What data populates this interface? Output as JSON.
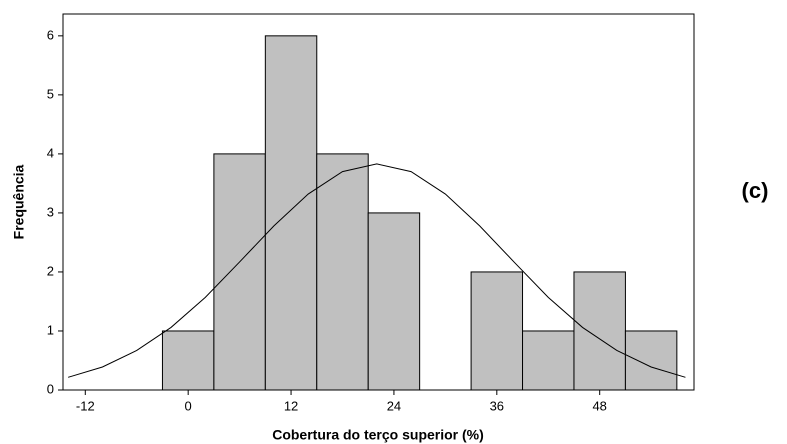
{
  "chart_data": {
    "type": "histogram",
    "xlabel": "Cobertura do terço superior (%)",
    "ylabel": "Frequência",
    "annotation": "(c)",
    "bins": [
      -3,
      3,
      9,
      15,
      21,
      27,
      33,
      39,
      45,
      51,
      57
    ],
    "values": [
      1,
      4,
      6,
      4,
      3,
      0,
      2,
      1,
      2,
      1
    ],
    "color": "#c0c0c0",
    "curve": {
      "x": [
        -14,
        -10,
        -6,
        -2,
        2,
        6,
        10,
        14,
        18,
        22,
        26,
        30,
        34,
        38,
        42,
        46,
        50,
        54,
        58
      ],
      "y": [
        0.215,
        0.39,
        0.67,
        1.06,
        1.57,
        2.17,
        2.78,
        3.32,
        3.7,
        3.83,
        3.7,
        3.32,
        2.78,
        2.17,
        1.57,
        1.06,
        0.67,
        0.39,
        0.215
      ]
    },
    "xlim": [
      -14.6,
      59
    ],
    "ylim": [
      0,
      6.37
    ],
    "xticks": [
      -12,
      0,
      12,
      24,
      36,
      48
    ],
    "yticks": [
      0,
      1,
      2,
      3,
      4,
      5,
      6
    ]
  }
}
